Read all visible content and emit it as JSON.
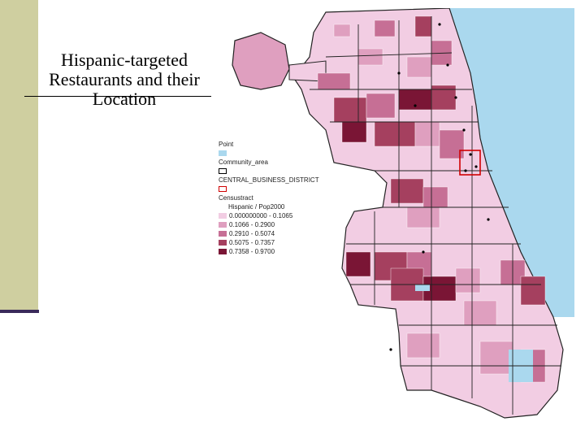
{
  "slide": {
    "title": "Hispanic-targeted Restaurants and their Location"
  },
  "legend": {
    "point_label": "Point",
    "community_area_label": "Community_area",
    "cbd_label": "CENTRAL_BUSINESS_DISTRICT",
    "censustract_label": "Censustract",
    "field_label": "Hispanic / Pop2000",
    "classes": [
      {
        "label": "0.000000000 - 0.1065",
        "color": "#f2cde3"
      },
      {
        "label": "0.1066 - 0.2900",
        "color": "#df9fbf"
      },
      {
        "label": "0.2910 - 0.5074",
        "color": "#c66f95"
      },
      {
        "label": "0.5075 - 0.7357",
        "color": "#a5405f"
      },
      {
        "label": "0.7358 - 0.9700",
        "color": "#7a1535"
      }
    ],
    "colors": {
      "water": "#aad8ee",
      "community_outline": "#000000",
      "cbd_outline": "#d00000"
    }
  }
}
